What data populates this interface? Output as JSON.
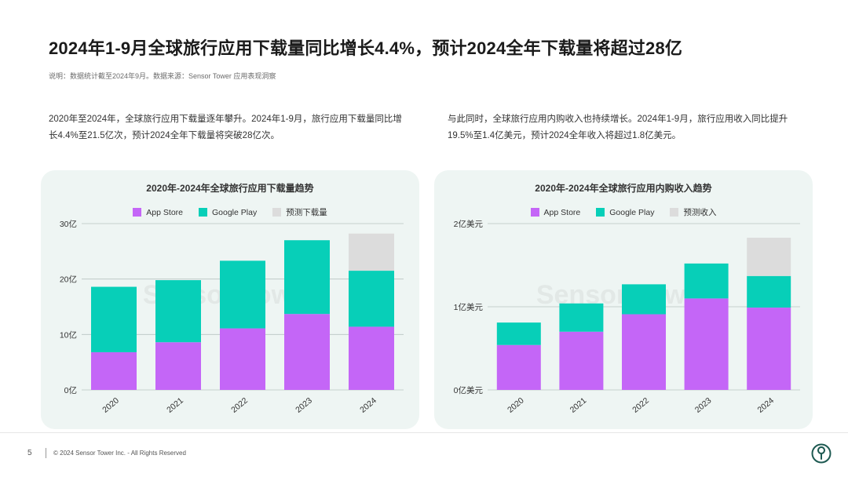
{
  "header": {
    "title": "2024年1-9月全球旅行应用下载量同比增长4.4%，预计2024全年下载量将超过28亿",
    "note": "说明：数据统计截至2024年9月。数据来源：Sensor Tower 应用表现洞察"
  },
  "text": {
    "left": "2020年至2024年，全球旅行应用下载量逐年攀升。2024年1-9月，旅行应用下载量同比增长4.4%至21.5亿次，预计2024全年下载量将突破28亿次。",
    "right": "与此同时，全球旅行应用内购收入也持续增长。2024年1-9月，旅行应用收入同比提升19.5%至1.4亿美元，预计2024全年收入将超过1.8亿美元。"
  },
  "watermark": "Sensor Tower",
  "footer": {
    "page": "5",
    "copyright": "© 2024 Sensor Tower Inc. - All Rights Reserved"
  },
  "colors": {
    "app_store": "#c466f7",
    "google_play": "#07cfb8",
    "forecast": "#dcdcdc"
  },
  "chart_data": [
    {
      "type": "bar",
      "stacked": true,
      "title": "2020年-2024年全球旅行应用下载量趋势",
      "categories": [
        "2020",
        "2021",
        "2022",
        "2023",
        "2024"
      ],
      "series": [
        {
          "name": "App Store",
          "values": [
            6.8,
            8.6,
            11.1,
            13.7,
            11.4
          ]
        },
        {
          "name": "Google Play",
          "values": [
            11.8,
            11.2,
            12.2,
            13.3,
            10.1
          ]
        },
        {
          "name": "预测下载量",
          "values": [
            0,
            0,
            0,
            0,
            6.7
          ]
        }
      ],
      "yticks": [
        0,
        10,
        20,
        30
      ],
      "ytick_labels": [
        "0亿",
        "10亿",
        "20亿",
        "30亿"
      ],
      "ylim": [
        0,
        30
      ],
      "legend": "top-center",
      "grid": true
    },
    {
      "type": "bar",
      "stacked": true,
      "title": "2020年-2024年全球旅行应用内购收入趋势",
      "categories": [
        "2020",
        "2021",
        "2022",
        "2023",
        "2024"
      ],
      "series": [
        {
          "name": "App Store",
          "values": [
            0.54,
            0.7,
            0.91,
            1.1,
            0.99
          ]
        },
        {
          "name": "Google Play",
          "values": [
            0.27,
            0.34,
            0.36,
            0.42,
            0.38
          ]
        },
        {
          "name": "预测收入",
          "values": [
            0,
            0,
            0,
            0,
            0.46
          ]
        }
      ],
      "yticks": [
        0,
        1,
        2
      ],
      "ytick_labels": [
        "0亿美元",
        "1亿美元",
        "2亿美元"
      ],
      "ylim": [
        0,
        2
      ],
      "legend": "top-center",
      "grid": true
    }
  ]
}
